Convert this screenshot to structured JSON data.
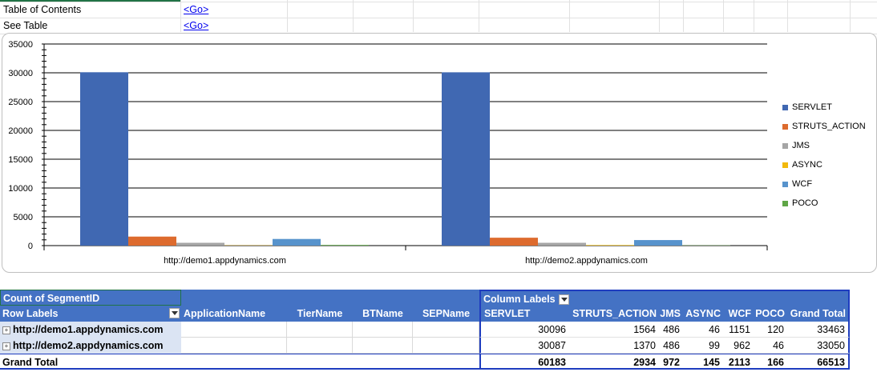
{
  "sheet": {
    "rows": [
      {
        "label": "Table of Contents",
        "link": "<Go>"
      },
      {
        "label": "See Table",
        "link": "<Go>"
      }
    ]
  },
  "chart_data": {
    "type": "bar",
    "categories": [
      "http://demo1.appdynamics.com",
      "http://demo2.appdynamics.com"
    ],
    "series": [
      {
        "name": "SERVLET",
        "color": "#4068b2",
        "values": [
          30096,
          30087
        ]
      },
      {
        "name": "STRUTS_ACTION",
        "color": "#dd6b2e",
        "values": [
          1564,
          1370
        ]
      },
      {
        "name": "JMS",
        "color": "#a5a5a5",
        "values": [
          486,
          486
        ]
      },
      {
        "name": "ASYNC",
        "color": "#f2b90c",
        "values": [
          46,
          99
        ]
      },
      {
        "name": "WCF",
        "color": "#5793cc",
        "values": [
          1151,
          962
        ]
      },
      {
        "name": "POCO",
        "color": "#5fa646",
        "values": [
          120,
          46
        ]
      }
    ],
    "yticks": [
      0,
      5000,
      10000,
      15000,
      20000,
      25000,
      30000,
      35000
    ],
    "ylim": [
      0,
      35000
    ],
    "grid": true,
    "legend": "right"
  },
  "pivot": {
    "title": "Count of SegmentID",
    "column_labels": "Column Labels",
    "row_labels": "Row Labels",
    "row_fields": [
      "ApplicationName",
      "TierName",
      "BTName",
      "SEPName"
    ],
    "columns": [
      "SERVLET",
      "STRUTS_ACTION",
      "JMS",
      "ASYNC",
      "WCF",
      "POCO",
      "Grand Total"
    ],
    "rows": [
      {
        "label": "http://demo1.appdynamics.com",
        "values": [
          "30096",
          "1564",
          "486",
          "46",
          "1151",
          "120",
          "33463"
        ]
      },
      {
        "label": "http://demo2.appdynamics.com",
        "values": [
          "30087",
          "1370",
          "486",
          "99",
          "962",
          "46",
          "33050"
        ]
      }
    ],
    "grand_total": {
      "label": "Grand Total",
      "values": [
        "60183",
        "2934",
        "972",
        "145",
        "2113",
        "166",
        "66513"
      ]
    }
  }
}
